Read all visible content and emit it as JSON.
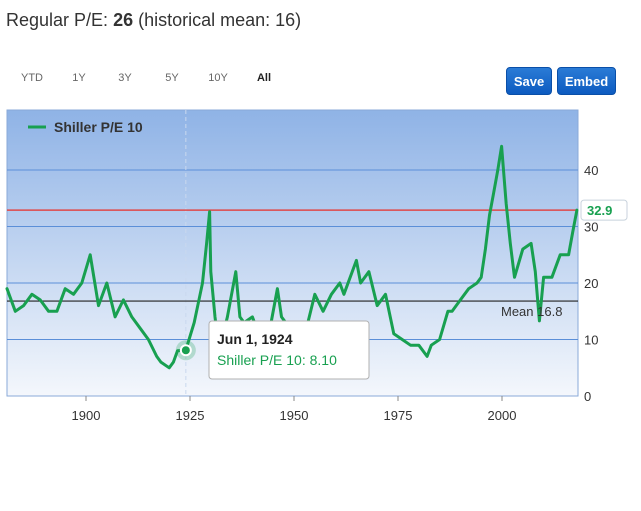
{
  "header": {
    "prefix": "Regular P/E: ",
    "value": "26",
    "suffix": " (historical mean: 16)"
  },
  "range_buttons": [
    {
      "label": "YTD",
      "active": false
    },
    {
      "label": "1Y",
      "active": false
    },
    {
      "label": "3Y",
      "active": false
    },
    {
      "label": "5Y",
      "active": false
    },
    {
      "label": "10Y",
      "active": false
    },
    {
      "label": "All",
      "active": true
    }
  ],
  "toolbar": {
    "save_label": "Save",
    "embed_label": "Embed"
  },
  "colors": {
    "series": "#18a050",
    "current_line": "#e04848",
    "mean_line": "#222222",
    "background_top": "#8fb3e6",
    "background_bottom": "#f4f7fc",
    "button": "#1565c8"
  },
  "chart_data": {
    "type": "line",
    "title": "",
    "xlabel": "",
    "ylabel": "",
    "xlim": [
      1881,
      2018
    ],
    "ylim": [
      0,
      50
    ],
    "x_ticks": [
      "1900",
      "1925",
      "1950",
      "1975",
      "2000"
    ],
    "y_ticks": [
      "0",
      "10",
      "20",
      "30",
      "40"
    ],
    "legend": {
      "position": "top-left",
      "entries": [
        "Shiller P/E 10"
      ]
    },
    "grid": true,
    "series": [
      {
        "name": "Shiller P/E 10",
        "x": [
          1881,
          1883,
          1885,
          1887,
          1889,
          1891,
          1893,
          1895,
          1897,
          1899,
          1901,
          1903,
          1905,
          1907,
          1909,
          1911,
          1913,
          1915,
          1917,
          1918,
          1920,
          1921,
          1922,
          1924,
          1926,
          1928,
          1929,
          1929.7,
          1930,
          1931,
          1932,
          1934,
          1936,
          1937,
          1938,
          1940,
          1942,
          1944,
          1946,
          1947,
          1949,
          1951,
          1953,
          1955,
          1957,
          1959,
          1961,
          1962,
          1965,
          1966,
          1968,
          1970,
          1972,
          1974,
          1976,
          1978,
          1980,
          1982,
          1983,
          1985,
          1987,
          1988,
          1990,
          1992,
          1994,
          1995,
          1996,
          1997,
          1998,
          1999,
          1999.9,
          2001,
          2002,
          2003,
          2005,
          2007,
          2008,
          2009,
          2010,
          2012,
          2014,
          2016,
          2017,
          2018
        ],
        "values": [
          19,
          15,
          16,
          18,
          17,
          15,
          15,
          19,
          18,
          20,
          25,
          16,
          20,
          14,
          17,
          14,
          12,
          10,
          7,
          6,
          5,
          6,
          8,
          8.1,
          13,
          20,
          27,
          32.6,
          22,
          14,
          8,
          14,
          22,
          14,
          13,
          14,
          10,
          11,
          19,
          14,
          12,
          13,
          12,
          18,
          15,
          18,
          20,
          18,
          24,
          20,
          22,
          16,
          18,
          11,
          10,
          9,
          9,
          7,
          9,
          10,
          15,
          15,
          17,
          19,
          20,
          21,
          26,
          32,
          36,
          40,
          44.2,
          34,
          27,
          21,
          26,
          27,
          22,
          13.3,
          21,
          21,
          25,
          25,
          29,
          32.9
        ]
      }
    ],
    "annotations": {
      "current_value": {
        "label": "32.9",
        "value": 32.9
      },
      "mean": {
        "label": "Mean 16.8",
        "value": 16.8
      },
      "tooltip": {
        "date": "Jun 1, 1924",
        "series": "Shiller P/E 10",
        "value_text": "8.10",
        "x": 1924,
        "y": 8.1
      }
    }
  }
}
